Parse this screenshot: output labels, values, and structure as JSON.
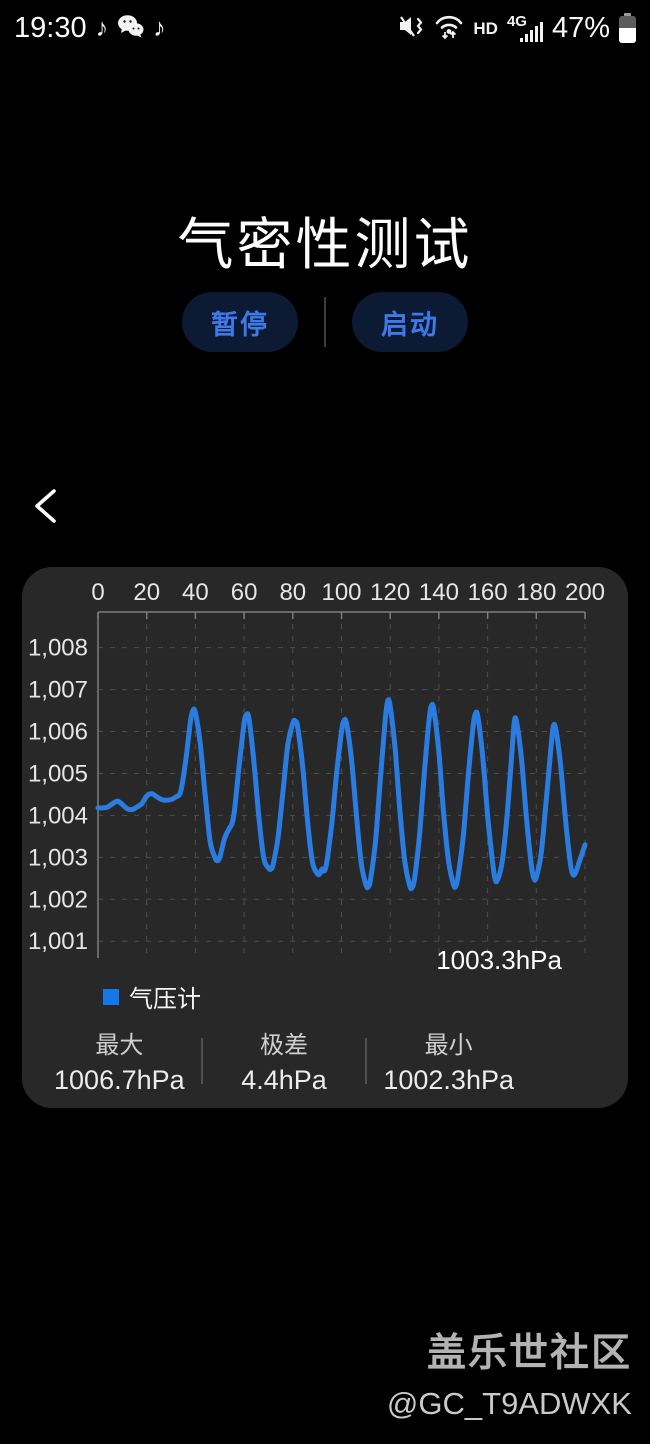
{
  "status_bar": {
    "time": "19:30",
    "note_glyph": "♪",
    "hd_label": "HD",
    "network_label": "4G",
    "battery_label": "47%",
    "icons": [
      "music-note-icon",
      "wechat-icon",
      "music-note-icon",
      "mute-vibrate-icon",
      "wifi-icon",
      "hd-badge",
      "signal-4g-icon",
      "battery-icon"
    ]
  },
  "header": {
    "title": "气密性测试"
  },
  "controls": {
    "pause_label": "暂停",
    "start_label": "启动"
  },
  "navigation": {
    "back_icon": "chevron-left"
  },
  "colors": {
    "background": "#000000",
    "card_background": "#282828",
    "line_blue": "#2b7ce0",
    "legend_blue": "#1478e8",
    "button_background": "#0c1a33",
    "button_text": "#3e79ea"
  },
  "chart_data": {
    "type": "line",
    "title": "",
    "xlabel": "",
    "ylabel": "",
    "legend_position": "bottom-left",
    "grid": "dashed",
    "xlim": [
      0,
      200
    ],
    "ylim": [
      1000.6,
      1008.85
    ],
    "x_ticks": [
      0,
      20,
      40,
      60,
      80,
      100,
      120,
      140,
      160,
      180,
      200
    ],
    "x_tick_labels": [
      "0",
      "20",
      "40",
      "60",
      "80",
      "100",
      "120",
      "140",
      "160",
      "180",
      "200"
    ],
    "y_ticks": [
      1001,
      1002,
      1003,
      1004,
      1005,
      1006,
      1007,
      1008
    ],
    "y_tick_labels": [
      "1,001",
      "1,002",
      "1,003",
      "1,004",
      "1,005",
      "1,006",
      "1,007",
      "1,008"
    ],
    "series": [
      {
        "name": "气压计",
        "color": "#2b7ce0",
        "points": [
          [
            0,
            1004.18
          ],
          [
            2,
            1004.18
          ],
          [
            4,
            1004.2
          ],
          [
            6,
            1004.28
          ],
          [
            8,
            1004.34
          ],
          [
            10,
            1004.26
          ],
          [
            12,
            1004.16
          ],
          [
            14,
            1004.14
          ],
          [
            16,
            1004.2
          ],
          [
            18,
            1004.28
          ],
          [
            20,
            1004.46
          ],
          [
            22,
            1004.52
          ],
          [
            24,
            1004.45
          ],
          [
            26,
            1004.38
          ],
          [
            28,
            1004.36
          ],
          [
            30,
            1004.38
          ],
          [
            32,
            1004.44
          ],
          [
            34,
            1004.58
          ],
          [
            36,
            1005.3
          ],
          [
            38,
            1006.25
          ],
          [
            39,
            1006.5
          ],
          [
            40,
            1006.45
          ],
          [
            42,
            1005.7
          ],
          [
            44,
            1004.5
          ],
          [
            46,
            1003.4
          ],
          [
            48,
            1003.0
          ],
          [
            49,
            1002.92
          ],
          [
            50,
            1003.0
          ],
          [
            52,
            1003.45
          ],
          [
            54,
            1003.7
          ],
          [
            55,
            1003.8
          ],
          [
            56,
            1004.1
          ],
          [
            58,
            1005.2
          ],
          [
            60,
            1006.2
          ],
          [
            61,
            1006.4
          ],
          [
            62,
            1006.3
          ],
          [
            64,
            1005.3
          ],
          [
            66,
            1004.0
          ],
          [
            68,
            1003.0
          ],
          [
            70,
            1002.75
          ],
          [
            71,
            1002.72
          ],
          [
            72,
            1002.85
          ],
          [
            74,
            1003.5
          ],
          [
            76,
            1004.6
          ],
          [
            78,
            1005.7
          ],
          [
            80,
            1006.2
          ],
          [
            81,
            1006.25
          ],
          [
            82,
            1006.1
          ],
          [
            84,
            1005.2
          ],
          [
            86,
            1003.9
          ],
          [
            88,
            1002.9
          ],
          [
            90,
            1002.62
          ],
          [
            91,
            1002.6
          ],
          [
            92,
            1002.72
          ],
          [
            93,
            1002.68
          ],
          [
            94,
            1002.9
          ],
          [
            96,
            1003.8
          ],
          [
            98,
            1005.0
          ],
          [
            100,
            1006.0
          ],
          [
            101,
            1006.25
          ],
          [
            102,
            1006.2
          ],
          [
            104,
            1005.4
          ],
          [
            106,
            1004.1
          ],
          [
            108,
            1002.9
          ],
          [
            110,
            1002.35
          ],
          [
            111,
            1002.3
          ],
          [
            112,
            1002.5
          ],
          [
            114,
            1003.4
          ],
          [
            116,
            1004.9
          ],
          [
            118,
            1006.3
          ],
          [
            119,
            1006.73
          ],
          [
            120,
            1006.6
          ],
          [
            122,
            1005.6
          ],
          [
            124,
            1004.1
          ],
          [
            126,
            1002.9
          ],
          [
            128,
            1002.32
          ],
          [
            129,
            1002.28
          ],
          [
            130,
            1002.5
          ],
          [
            132,
            1003.5
          ],
          [
            134,
            1005.0
          ],
          [
            136,
            1006.3
          ],
          [
            137,
            1006.62
          ],
          [
            138,
            1006.5
          ],
          [
            140,
            1005.5
          ],
          [
            142,
            1004.0
          ],
          [
            144,
            1002.9
          ],
          [
            146,
            1002.35
          ],
          [
            147,
            1002.32
          ],
          [
            148,
            1002.6
          ],
          [
            150,
            1003.5
          ],
          [
            152,
            1004.9
          ],
          [
            154,
            1006.1
          ],
          [
            155,
            1006.42
          ],
          [
            156,
            1006.35
          ],
          [
            158,
            1005.4
          ],
          [
            160,
            1004.0
          ],
          [
            162,
            1002.9
          ],
          [
            163,
            1002.5
          ],
          [
            164,
            1002.45
          ],
          [
            166,
            1002.9
          ],
          [
            168,
            1004.0
          ],
          [
            170,
            1005.5
          ],
          [
            171,
            1006.25
          ],
          [
            172,
            1006.2
          ],
          [
            174,
            1005.3
          ],
          [
            176,
            1003.9
          ],
          [
            178,
            1002.8
          ],
          [
            179,
            1002.5
          ],
          [
            180,
            1002.52
          ],
          [
            182,
            1003.1
          ],
          [
            184,
            1004.3
          ],
          [
            186,
            1005.6
          ],
          [
            187,
            1006.12
          ],
          [
            188,
            1006.05
          ],
          [
            190,
            1005.2
          ],
          [
            192,
            1003.9
          ],
          [
            194,
            1002.85
          ],
          [
            195,
            1002.6
          ],
          [
            196,
            1002.62
          ],
          [
            198,
            1002.95
          ],
          [
            200,
            1003.3
          ]
        ]
      }
    ],
    "current_value": "1003.3hPa",
    "legend": {
      "label": "气压计",
      "color": "#1478e8"
    },
    "stats": [
      {
        "label": "最大",
        "value": "1006.7hPa"
      },
      {
        "label": "极差",
        "value": "4.4hPa"
      },
      {
        "label": "最小",
        "value": "1002.3hPa"
      }
    ]
  },
  "watermark": {
    "line1": "盖乐世社区",
    "line2": "@GC_T9ADWXK"
  }
}
